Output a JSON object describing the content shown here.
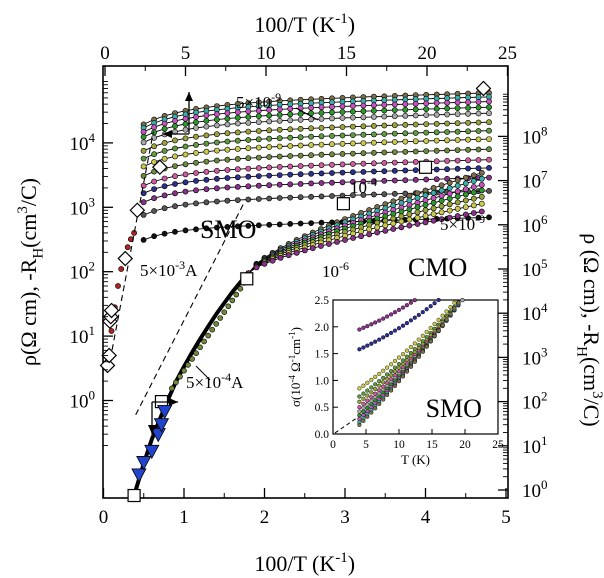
{
  "chart_data": {
    "type": "scatter",
    "main": {
      "x_bottom": {
        "label_parts": [
          "100/T (K",
          "-1",
          ")"
        ],
        "range": [
          0,
          5
        ],
        "ticks": [
          "0",
          "1",
          "2",
          "3",
          "4",
          "5"
        ]
      },
      "x_top": {
        "label_parts": [
          "100/T (K",
          "-1",
          ")"
        ],
        "range": [
          0,
          25
        ],
        "ticks": [
          "0",
          "5",
          "10",
          "15",
          "20",
          "25"
        ]
      },
      "y_left": {
        "label_parts": [
          "ρ(Ω cm), -R",
          "H",
          "(cm",
          "3",
          "/C)"
        ],
        "scale": "log",
        "ticks": [
          {
            "mant": "10",
            "exp": "0",
            "value": 1
          },
          {
            "mant": "10",
            "exp": "1",
            "value": 10
          },
          {
            "mant": "10",
            "exp": "2",
            "value": 100
          },
          {
            "mant": "10",
            "exp": "3",
            "value": 1000
          },
          {
            "mant": "10",
            "exp": "4",
            "value": 10000
          }
        ]
      },
      "y_right": {
        "label_parts": [
          "ρ (Ω cm), -R",
          "H",
          "(cm",
          "3",
          "/C)"
        ],
        "scale": "log",
        "ticks": [
          {
            "mant": "10",
            "exp": "0",
            "value": 1
          },
          {
            "mant": "10",
            "exp": "1",
            "value": 10
          },
          {
            "mant": "10",
            "exp": "2",
            "value": 100
          },
          {
            "mant": "10",
            "exp": "3",
            "value": 1000
          },
          {
            "mant": "10",
            "exp": "4",
            "value": 10000
          },
          {
            "mant": "10",
            "exp": "5",
            "value": 100000
          },
          {
            "mant": "10",
            "exp": "6",
            "value": 1000000
          },
          {
            "mant": "10",
            "exp": "7",
            "value": 10000000
          },
          {
            "mant": "10",
            "exp": "8",
            "value": 100000000
          }
        ]
      },
      "labels": {
        "smo": "SMO",
        "cmo": "CMO",
        "smo_top_current": {
          "mant": "5×10",
          "exp": "-9"
        },
        "smo_bottom_current": {
          "mant": "10",
          "exp": "-4"
        },
        "smo_ramp_current": {
          "mant": "5×10",
          "exp": "-3",
          "suffix": "A"
        },
        "cmo_top_current": {
          "mant": "5×10",
          "exp": "-9"
        },
        "cmo_bottom_current": {
          "mant": "10",
          "exp": "-6"
        },
        "cmo_ramp_current": {
          "mant": "5×10",
          "exp": "-4",
          "suffix": "A"
        }
      },
      "smo_series": [
        {
          "color": "#7b6d4a",
          "plateau": 60000,
          "sat": 3.4
        },
        {
          "color": "#36b0a8",
          "plateau": 52000,
          "sat": 3.3
        },
        {
          "color": "#c94fc2",
          "plateau": 44000,
          "sat": 3.2
        },
        {
          "color": "#2a9a2a",
          "plateau": 36000,
          "sat": 3.1
        },
        {
          "color": "#a9a9a9",
          "plateau": 29000,
          "sat": 3.0
        },
        {
          "color": "#9aa33a",
          "plateau": 21000,
          "sat": 2.9
        },
        {
          "color": "#5f9b3f",
          "plateau": 15500,
          "sat": 2.8
        },
        {
          "color": "#c9c94a",
          "plateau": 11500,
          "sat": 2.7
        },
        {
          "color": "#6e8a3c",
          "plateau": 8000,
          "sat": 2.6
        },
        {
          "color": "#d05aa0",
          "plateau": 5500,
          "sat": 2.5
        },
        {
          "color": "#2d2f8f",
          "plateau": 4100,
          "sat": 2.4
        },
        {
          "color": "#8a2f8a",
          "plateau": 2900,
          "sat": 2.3
        },
        {
          "color": "#555555",
          "plateau": 1800,
          "sat": 2.2
        },
        {
          "color": "#111111",
          "plateau": 700,
          "sat": 2.0
        }
      ],
      "smo_ramp": [
        [
          0.06,
          3.5
        ],
        [
          0.1,
          12
        ],
        [
          0.14,
          28
        ],
        [
          0.18,
          60
        ],
        [
          0.22,
          110
        ],
        [
          0.26,
          170
        ],
        [
          0.3,
          240
        ],
        [
          0.34,
          320
        ],
        [
          0.38,
          400
        ]
      ],
      "smo_diamonds": [
        [
          0.05,
          3.5
        ],
        [
          0.07,
          5
        ],
        [
          0.08,
          17
        ],
        [
          0.09,
          20
        ],
        [
          0.1,
          25
        ],
        [
          0.27,
          160
        ],
        [
          0.42,
          900
        ],
        [
          0.7,
          4200
        ],
        [
          4.72,
          70000
        ]
      ],
      "cmo_series": [
        {
          "color": "#7b6d4a",
          "end": 15000000
        },
        {
          "color": "#36b0a8",
          "end": 11000000
        },
        {
          "color": "#c94fc2",
          "end": 8000000
        },
        {
          "color": "#2a9a2a",
          "end": 6000000
        },
        {
          "color": "#9aa33a",
          "end": 4300000
        },
        {
          "color": "#c9c94a",
          "end": 3000000
        },
        {
          "color": "#8a2f8a",
          "end": 2000000
        }
      ],
      "cmo_ramp": [
        [
          0.38,
          0.75
        ],
        [
          0.5,
          4
        ],
        [
          0.6,
          14
        ],
        [
          0.7,
          40
        ],
        [
          0.8,
          110
        ],
        [
          0.9,
          280
        ],
        [
          1.0,
          620
        ],
        [
          1.1,
          1300
        ],
        [
          1.2,
          2600
        ],
        [
          1.3,
          5000
        ],
        [
          1.4,
          9500
        ],
        [
          1.5,
          17000
        ],
        [
          1.6,
          30000
        ],
        [
          1.7,
          50000
        ],
        [
          1.8,
          80000
        ]
      ],
      "cmo_squares": [
        [
          0.38,
          0.75
        ],
        [
          0.72,
          100
        ],
        [
          1.78,
          60000
        ],
        [
          2.98,
          3000000
        ],
        [
          4.0,
          20000000
        ]
      ],
      "cmo_triangles": [
        [
          0.44,
          2.2
        ],
        [
          0.5,
          4.2
        ],
        [
          0.6,
          7.5
        ],
        [
          0.68,
          18
        ],
        [
          0.72,
          30
        ],
        [
          0.76,
          60
        ]
      ]
    },
    "inset": {
      "xlabel": "T (K)",
      "ylabel_parts": [
        "σ(10",
        "-4",
        " Ω",
        "-1",
        "cm",
        "-1",
        ")"
      ],
      "x_range": [
        0,
        25
      ],
      "y_range": [
        0,
        2.5
      ],
      "x_ticks": [
        "0",
        "5",
        "10",
        "15",
        "20",
        "25"
      ],
      "y_ticks": [
        "0.0",
        "0.5",
        "1.0",
        "1.5",
        "2.0",
        "2.5"
      ],
      "label": "SMO",
      "series": [
        {
          "color": "#8a2f8a",
          "y0": 1.95,
          "slope": 0.05
        },
        {
          "color": "#2d2f8f",
          "y0": 1.58,
          "slope": 0.055
        },
        {
          "color": "#c9c94a",
          "y0": 0.85,
          "slope": 0.085
        },
        {
          "color": "#5f9b3f",
          "y0": 0.7,
          "slope": 0.09
        },
        {
          "color": "#9aa33a",
          "y0": 0.6,
          "slope": 0.095
        },
        {
          "color": "#d05aa0",
          "y0": 0.5,
          "slope": 0.1
        },
        {
          "color": "#a9a9a9",
          "y0": 0.42,
          "slope": 0.105
        },
        {
          "color": "#2a9a2a",
          "y0": 0.35,
          "slope": 0.11
        },
        {
          "color": "#c94fc2",
          "y0": 0.28,
          "slope": 0.115
        },
        {
          "color": "#36b0a8",
          "y0": 0.22,
          "slope": 0.12
        },
        {
          "color": "#7b6d4a",
          "y0": 0.17,
          "slope": 0.125
        }
      ]
    }
  }
}
